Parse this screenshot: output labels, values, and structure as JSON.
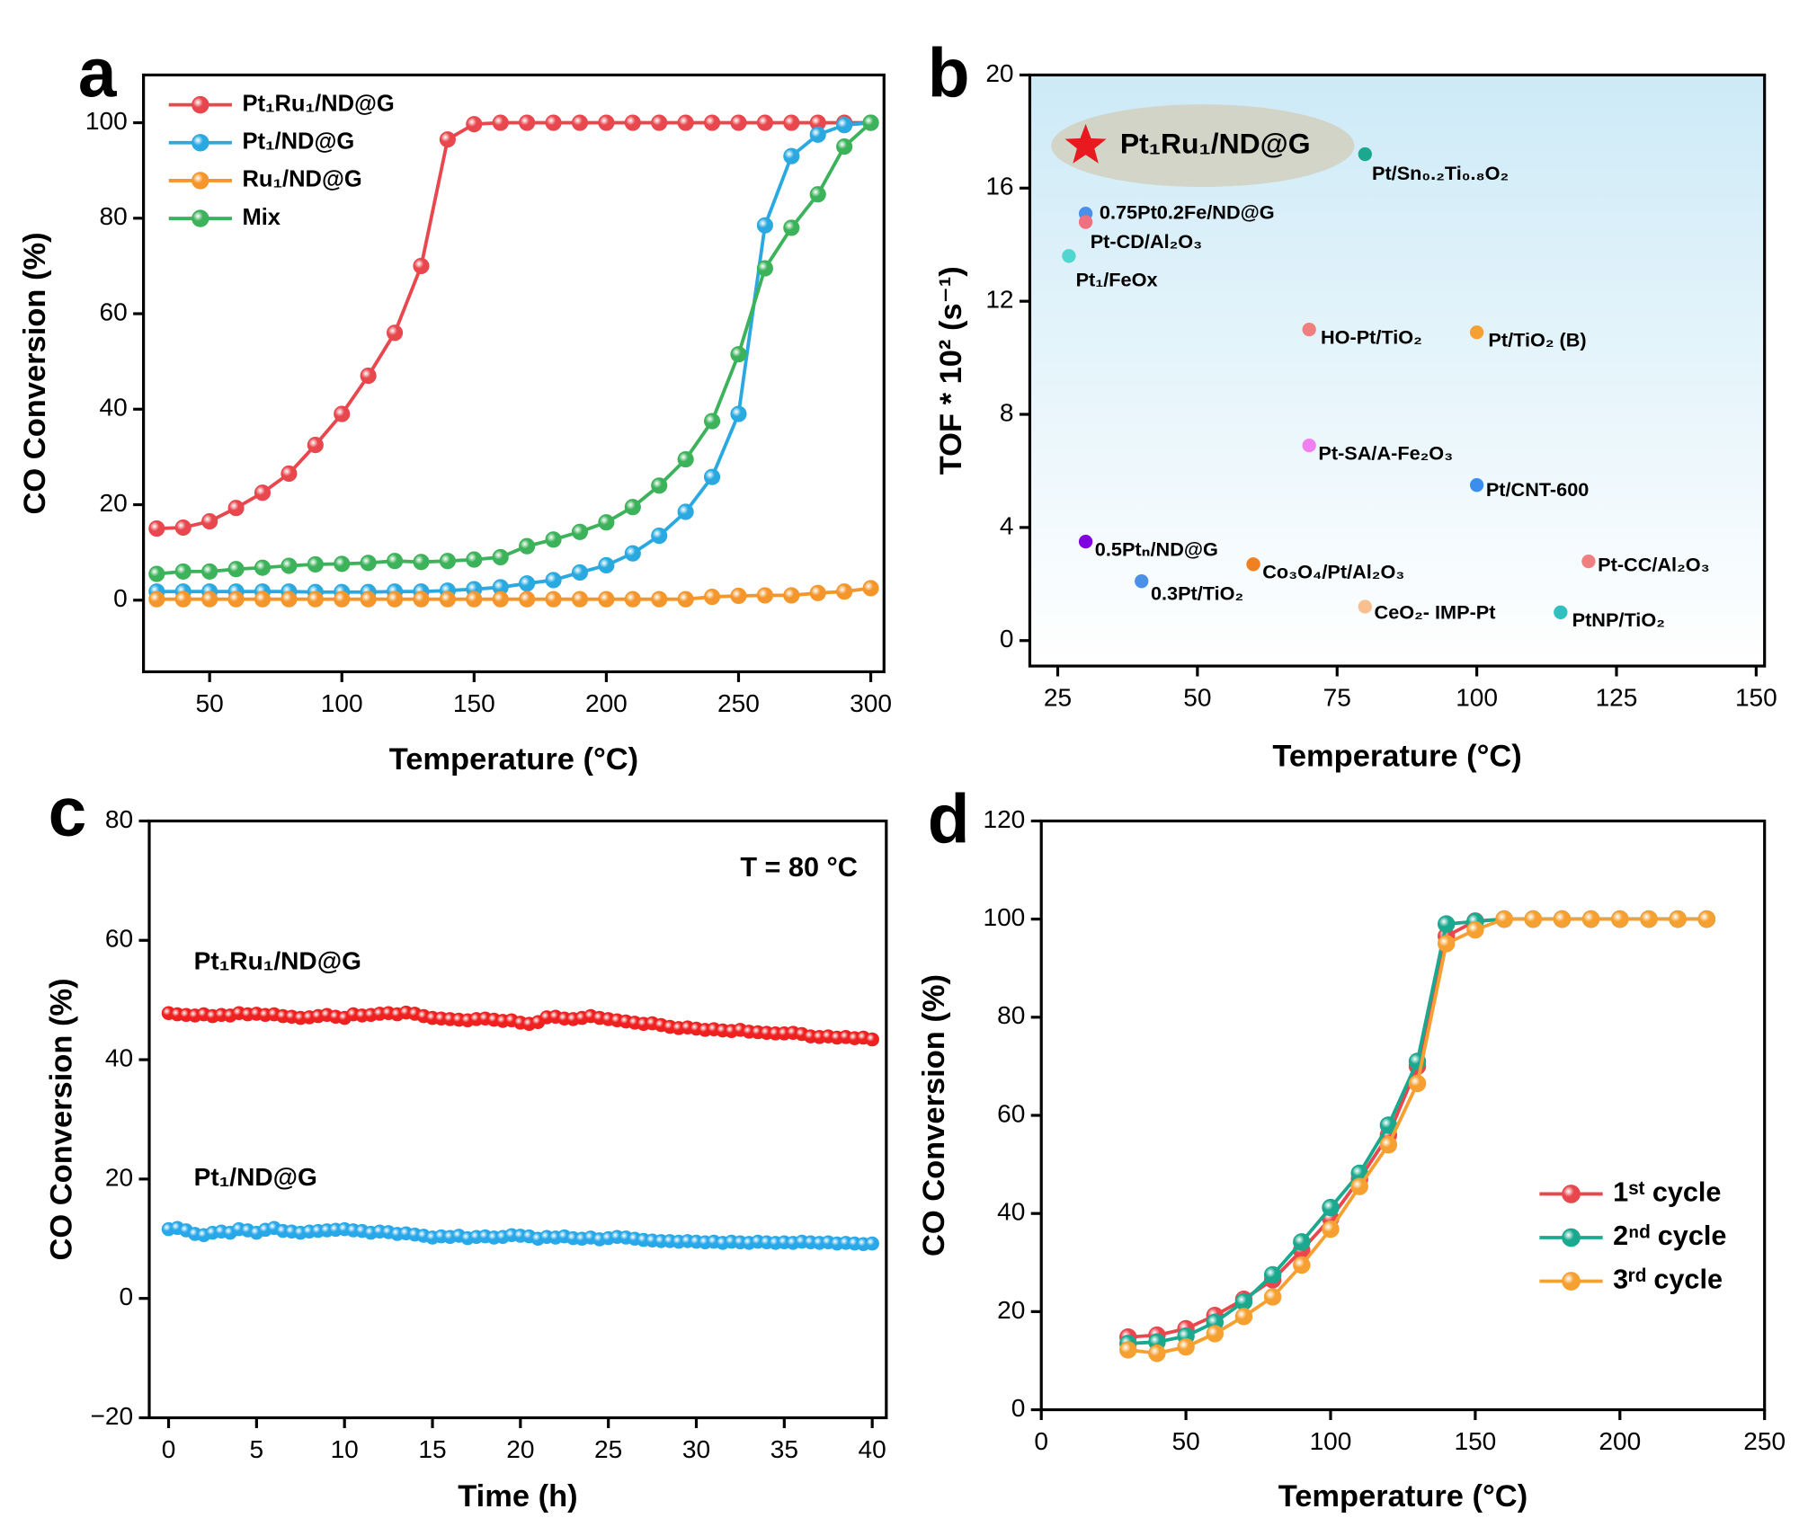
{
  "chart_data": [
    {
      "panel": "a",
      "type": "line",
      "x_label": "Temperature (°C)",
      "y_label": "CO Conversion (%)",
      "xlim": [
        25,
        305
      ],
      "ylim": [
        -15,
        110
      ],
      "xticks": [
        50,
        100,
        150,
        200,
        250,
        300
      ],
      "yticks": [
        0,
        20,
        40,
        60,
        80,
        100
      ],
      "legend": "top-left",
      "x": [
        30,
        40,
        50,
        60,
        70,
        80,
        90,
        100,
        110,
        120,
        130,
        140,
        150,
        160,
        170,
        180,
        190,
        200,
        210,
        220,
        230,
        240,
        250,
        260,
        270,
        280,
        290,
        300
      ],
      "series": [
        {
          "name": "Pt₁Ru₁/ND@G",
          "color": "#e8474d",
          "values": [
            15,
            15.2,
            16.5,
            19.3,
            22.5,
            26.5,
            32.5,
            39,
            47,
            56,
            70,
            96.5,
            99.7,
            100,
            100,
            100,
            100,
            100,
            100,
            100,
            100,
            100,
            100,
            100,
            100,
            100,
            100,
            100
          ]
        },
        {
          "name": "Pt₁/ND@G",
          "color": "#2aa9e0",
          "values": [
            1.8,
            1.8,
            1.8,
            1.8,
            1.8,
            1.8,
            1.7,
            1.7,
            1.7,
            1.8,
            1.8,
            2,
            2.3,
            2.7,
            3.5,
            4.2,
            5.8,
            7.3,
            9.8,
            13.5,
            18.5,
            25.8,
            39,
            78.5,
            93,
            97.5,
            99.5,
            100
          ]
        },
        {
          "name": "Ru₁/ND@G",
          "color": "#f4962b",
          "values": [
            0.2,
            0.2,
            0.2,
            0.2,
            0.2,
            0.2,
            0.2,
            0.2,
            0.2,
            0.2,
            0.2,
            0.2,
            0.2,
            0.2,
            0.2,
            0.2,
            0.2,
            0.2,
            0.2,
            0.2,
            0.2,
            0.7,
            0.9,
            1,
            1,
            1.5,
            1.8,
            2.5
          ]
        },
        {
          "name": "Mix",
          "color": "#3cb25a",
          "values": [
            5.5,
            6,
            6,
            6.5,
            6.8,
            7.2,
            7.5,
            7.6,
            7.8,
            8.2,
            8,
            8.2,
            8.5,
            9,
            11.3,
            12.7,
            14.3,
            16.3,
            19.5,
            24,
            29.5,
            37.5,
            51.5,
            69.5,
            78,
            85,
            95,
            100
          ]
        }
      ]
    },
    {
      "panel": "b",
      "type": "scatter",
      "x_label": "Temperature (°C)",
      "y_label": "TOF * 10² (s⁻¹)",
      "xlim": [
        20,
        151.5
      ],
      "ylim": [
        -0.9,
        20
      ],
      "xticks": [
        25,
        50,
        75,
        100,
        125,
        150
      ],
      "yticks": [
        0,
        4,
        8,
        12,
        16,
        20
      ],
      "background": "#cdeaf7",
      "points": [
        {
          "label": "Pt₁Ru₁/ND@G",
          "x": 30,
          "y": 17.5,
          "color": "#e8191f",
          "marker": "star",
          "highlight": true
        },
        {
          "label": "Pt/Sn₀.₂Ti₀.₈O₂",
          "x": 80,
          "y": 17.2,
          "color": "#1aa88e"
        },
        {
          "label": "0.75Pt0.2Fe/ND@G",
          "x": 30,
          "y": 15.1,
          "color": "#4a8fe8"
        },
        {
          "label": "Pt-CD/Al₂O₃",
          "x": 30,
          "y": 14.8,
          "color": "#f07080"
        },
        {
          "label": "Pt₁/FeOx",
          "x": 27,
          "y": 13.6,
          "color": "#4fd6d0"
        },
        {
          "label": "HO-Pt/TiO₂",
          "x": 70,
          "y": 11,
          "color": "#f08080"
        },
        {
          "label": "Pt/TiO₂ (B)",
          "x": 100,
          "y": 10.9,
          "color": "#f5a030"
        },
        {
          "label": "Pt-SA/A-Fe₂O₃",
          "x": 70,
          "y": 6.9,
          "color": "#f080f0"
        },
        {
          "label": "Pt/CNT-600",
          "x": 100,
          "y": 5.5,
          "color": "#3a8ef0"
        },
        {
          "label": "0.5Ptₙ/ND@G",
          "x": 30,
          "y": 3.5,
          "color": "#8000e0"
        },
        {
          "label": "0.3Pt/TiO₂",
          "x": 40,
          "y": 2.1,
          "color": "#4a90e8"
        },
        {
          "label": "Co₃O₄/Pt/Al₂O₃",
          "x": 60,
          "y": 2.7,
          "color": "#f08020"
        },
        {
          "label": "CeO₂- IMP-Pt",
          "x": 80,
          "y": 1.2,
          "color": "#f8c090"
        },
        {
          "label": "Pt-CC/Al₂O₃",
          "x": 120,
          "y": 2.8,
          "color": "#f08080"
        },
        {
          "label": "PtNP/TiO₂",
          "x": 115,
          "y": 1,
          "color": "#30c0c0"
        }
      ]
    },
    {
      "panel": "c",
      "type": "line",
      "x_label": "Time (h)",
      "y_label": "CO Conversion (%)",
      "annotation": "T = 80 °C",
      "xlim": [
        -1.1,
        40.8
      ],
      "ylim": [
        -20,
        80
      ],
      "xticks": [
        0,
        5,
        10,
        15,
        20,
        25,
        30,
        35,
        40
      ],
      "yticks": [
        {
          "value": -20,
          "label": "−20"
        },
        0,
        20,
        40,
        60,
        80
      ],
      "legend": "inline",
      "x": [
        0,
        0.5,
        1,
        1.5,
        2,
        2.5,
        3,
        3.5,
        4,
        4.5,
        5,
        5.5,
        6,
        6.5,
        7,
        7.5,
        8,
        8.5,
        9,
        9.5,
        10,
        10.5,
        11,
        11.5,
        12,
        12.5,
        13,
        13.5,
        14,
        14.5,
        15,
        15.5,
        16,
        16.5,
        17,
        17.5,
        18,
        18.5,
        19,
        19.5,
        20,
        20.5,
        21,
        21.5,
        22,
        22.5,
        23,
        23.5,
        24,
        24.5,
        25,
        25.5,
        26,
        26.5,
        27,
        27.5,
        28,
        28.5,
        29,
        29.5,
        30,
        30.5,
        31,
        31.5,
        32,
        32.5,
        33,
        33.5,
        34,
        34.5,
        35,
        35.5,
        36,
        36.5,
        37,
        37.5,
        38,
        38.5,
        39,
        39.5,
        40
      ],
      "series": [
        {
          "name": "Pt₁Ru₁/ND@G",
          "color": "#ee2020",
          "values": [
            47.8,
            47.6,
            47.5,
            47.4,
            47.6,
            47.3,
            47.5,
            47.4,
            47.8,
            47.6,
            47.7,
            47.5,
            47.6,
            47.3,
            47.2,
            47.0,
            47.1,
            47.3,
            47.5,
            47.2,
            47.0,
            47.6,
            47.4,
            47.5,
            47.7,
            47.8,
            47.6,
            47.9,
            47.7,
            47.3,
            47.0,
            46.9,
            46.8,
            46.7,
            46.6,
            46.8,
            46.9,
            46.7,
            46.5,
            46.6,
            46.2,
            46.0,
            46.3,
            47.1,
            47.2,
            46.9,
            46.8,
            47.0,
            47.3,
            47.0,
            46.8,
            46.6,
            46.4,
            46.2,
            46.0,
            46.1,
            45.8,
            45.5,
            45.3,
            45.4,
            45.2,
            45.0,
            45.1,
            44.9,
            44.8,
            45.0,
            44.7,
            44.6,
            44.5,
            44.4,
            44.4,
            44.5,
            44.3,
            43.9,
            43.8,
            43.9,
            43.7,
            43.8,
            43.6,
            43.7,
            43.4
          ]
        },
        {
          "name": "Pt₁/ND@G",
          "color": "#28a8e8",
          "values": [
            11.6,
            11.8,
            11.4,
            10.8,
            10.6,
            11.0,
            11.2,
            11.0,
            11.6,
            11.4,
            11.0,
            11.5,
            11.8,
            11.3,
            11.2,
            11.0,
            11.2,
            11.3,
            11.4,
            11.5,
            11.6,
            11.4,
            11.3,
            11.0,
            11.2,
            11.1,
            10.8,
            10.9,
            10.7,
            10.5,
            10.2,
            10.4,
            10.3,
            10.5,
            10.1,
            10.3,
            10.4,
            10.2,
            10.3,
            10.6,
            10.5,
            10.4,
            10.0,
            10.3,
            10.2,
            10.4,
            10.1,
            10.0,
            10.2,
            9.9,
            10.1,
            10.3,
            10.2,
            10.0,
            9.8,
            9.7,
            9.6,
            9.6,
            9.5,
            9.6,
            9.5,
            9.4,
            9.5,
            9.3,
            9.5,
            9.4,
            9.3,
            9.5,
            9.4,
            9.3,
            9.4,
            9.3,
            9.5,
            9.4,
            9.3,
            9.4,
            9.2,
            9.3,
            9.2,
            9.1,
            9.2
          ]
        }
      ]
    },
    {
      "panel": "d",
      "type": "line",
      "x_label": "Temperature (°C)",
      "y_label": "CO Conversion (%)",
      "xlim": [
        0,
        250
      ],
      "ylim": [
        0,
        120
      ],
      "xticks": [
        0,
        50,
        100,
        150,
        200,
        250
      ],
      "yticks": [
        0,
        20,
        40,
        60,
        80,
        100,
        120
      ],
      "legend": "bottom-right",
      "x": [
        30,
        40,
        50,
        60,
        70,
        80,
        90,
        100,
        110,
        120,
        130,
        140,
        150,
        160,
        170,
        180,
        190,
        200,
        210,
        220,
        230
      ],
      "series": [
        {
          "name": "1ˢᵗ cycle",
          "color": "#e8474d",
          "values": [
            14.8,
            15.2,
            16.5,
            19.2,
            22.5,
            26.5,
            32.5,
            39,
            47,
            56,
            70,
            96.5,
            99.6,
            100,
            100,
            100,
            100,
            100,
            100,
            100,
            100
          ]
        },
        {
          "name": "2ⁿᵈ cycle",
          "color": "#1aa88e",
          "values": [
            13.5,
            13.8,
            15,
            17.8,
            22,
            27.5,
            34.2,
            41.2,
            48.2,
            58,
            71,
            99,
            99.5,
            100,
            100,
            100,
            100,
            100,
            100,
            100,
            100
          ]
        },
        {
          "name": "3ʳᵈ cycle",
          "color": "#f5a030",
          "values": [
            12.2,
            11.5,
            12.8,
            15.5,
            19,
            23,
            29.5,
            36.8,
            45.5,
            54,
            66.5,
            95,
            97.8,
            100,
            100,
            100,
            100,
            100,
            100,
            100,
            100
          ]
        }
      ]
    }
  ]
}
